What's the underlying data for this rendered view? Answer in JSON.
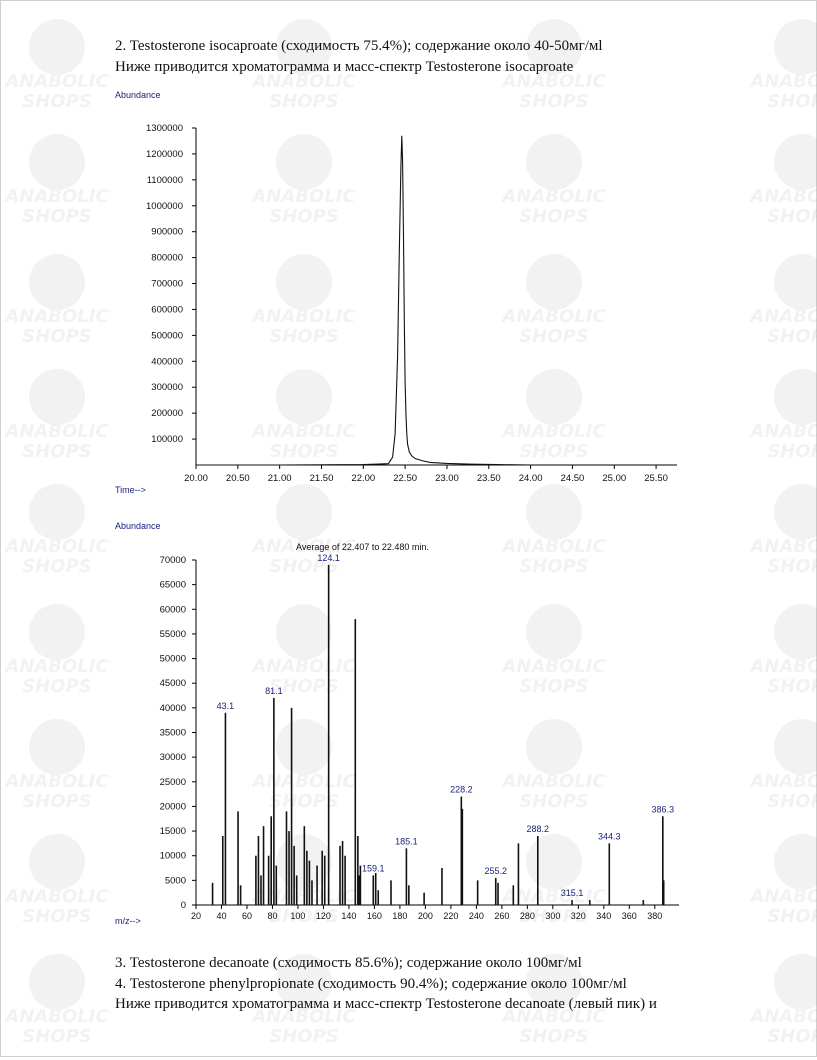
{
  "document": {
    "line1": "2. Testosterone isocaproate (сходимость 75.4%); содержание около 40-50мг/мl",
    "line2": "Ниже приводится хроматограмма и масс-спектр Testosterone isocaproate",
    "line3": "3. Testosterone decanoate (сходимость 85.6%); содержание около 100мг/мl",
    "line4": "4. Testosterone phenylpropionate (сходимость 90.4%); содержание около 100мг/мl",
    "line5": "Ниже приводится хроматограмма и масс-спектр Testosterone decanoate (левый пик) и"
  },
  "watermark": {
    "line1": "ANABOLIC",
    "line2": "SHOPS",
    "color": "#9e9e9e"
  },
  "chart_data": [
    {
      "type": "line",
      "ylabel": "Abundance",
      "xlabel": "Time-->",
      "xlim": [
        20.0,
        25.75
      ],
      "ylim": [
        0,
        1300000
      ],
      "xticks": [
        "20.00",
        "20.50",
        "21.00",
        "21.50",
        "22.00",
        "22.50",
        "23.00",
        "23.50",
        "24.00",
        "24.50",
        "25.00",
        "25.50"
      ],
      "yticks": [
        "100000",
        "200000",
        "300000",
        "400000",
        "500000",
        "600000",
        "700000",
        "800000",
        "900000",
        "1000000",
        "1100000",
        "1200000",
        "1300000"
      ],
      "x": [
        20.0,
        21.0,
        22.0,
        22.3,
        22.35,
        22.38,
        22.41,
        22.43,
        22.45,
        22.46,
        22.47,
        22.48,
        22.49,
        22.5,
        22.51,
        22.52,
        22.53,
        22.55,
        22.58,
        22.62,
        22.7,
        22.8,
        23.0,
        23.3,
        23.6,
        24.0
      ],
      "y": [
        0,
        0,
        2000,
        5000,
        30000,
        120000,
        420000,
        820000,
        1150000,
        1270000,
        1170000,
        880000,
        560000,
        320000,
        190000,
        120000,
        80000,
        50000,
        35000,
        25000,
        17000,
        10000,
        6000,
        3000,
        1500,
        0
      ],
      "color": "#111111"
    },
    {
      "type": "bar",
      "ylabel": "Abundance",
      "xlabel": "m/z-->",
      "title": "Average of 22.407 to 22.480 min.",
      "xlim": [
        20,
        399
      ],
      "ylim": [
        0,
        70000
      ],
      "xticks": [
        "20",
        "40",
        "60",
        "80",
        "100",
        "120",
        "140",
        "160",
        "180",
        "200",
        "220",
        "240",
        "260",
        "280",
        "300",
        "320",
        "340",
        "360",
        "380"
      ],
      "yticks": [
        "0",
        "5000",
        "10000",
        "15000",
        "20000",
        "25000",
        "30000",
        "35000",
        "40000",
        "45000",
        "50000",
        "55000",
        "60000",
        "65000",
        "70000"
      ],
      "x": [
        33,
        41,
        43.1,
        53,
        55,
        67,
        69,
        71,
        73,
        77,
        79,
        81.1,
        83,
        91,
        93,
        95,
        97,
        99,
        105,
        107,
        109,
        111,
        115,
        119,
        121,
        124.1,
        133,
        135,
        137,
        145,
        147,
        148,
        149,
        159.1,
        161,
        163,
        173,
        185.1,
        187,
        199,
        213,
        228.2,
        229,
        241,
        255.2,
        257,
        269,
        273,
        288.2,
        315.1,
        329,
        344.3,
        371,
        386.3,
        387
      ],
      "y": [
        4500,
        14000,
        39000,
        19000,
        4000,
        10000,
        14000,
        6000,
        16000,
        10000,
        18000,
        42000,
        8000,
        19000,
        15000,
        40000,
        12000,
        6000,
        16000,
        11000,
        9000,
        5000,
        8000,
        11000,
        10000,
        69000,
        12000,
        13000,
        10000,
        58000,
        14000,
        6000,
        8000,
        6000,
        6500,
        3000,
        5000,
        11500,
        4000,
        2500,
        7500,
        22000,
        19500,
        5000,
        5500,
        4500,
        4000,
        12500,
        14000,
        1000,
        1000,
        12500,
        1000,
        18000,
        5000
      ],
      "labels": [
        {
          "x": 43.1,
          "y": 39000,
          "text": "43.1"
        },
        {
          "x": 81.1,
          "y": 42000,
          "text": "81.1"
        },
        {
          "x": 124.1,
          "y": 69000,
          "text": "124.1"
        },
        {
          "x": 159.1,
          "y": 6000,
          "text": "159.1"
        },
        {
          "x": 185.1,
          "y": 11500,
          "text": "185.1"
        },
        {
          "x": 228.2,
          "y": 22000,
          "text": "228.2"
        },
        {
          "x": 255.2,
          "y": 5500,
          "text": "255.2"
        },
        {
          "x": 288.2,
          "y": 14000,
          "text": "288.2"
        },
        {
          "x": 315.1,
          "y": 1000,
          "text": "315.1"
        },
        {
          "x": 344.3,
          "y": 12500,
          "text": "344.3"
        },
        {
          "x": 386.3,
          "y": 18000,
          "text": "386.3"
        }
      ],
      "color": "#111111",
      "label_color": "#1a237e"
    }
  ]
}
